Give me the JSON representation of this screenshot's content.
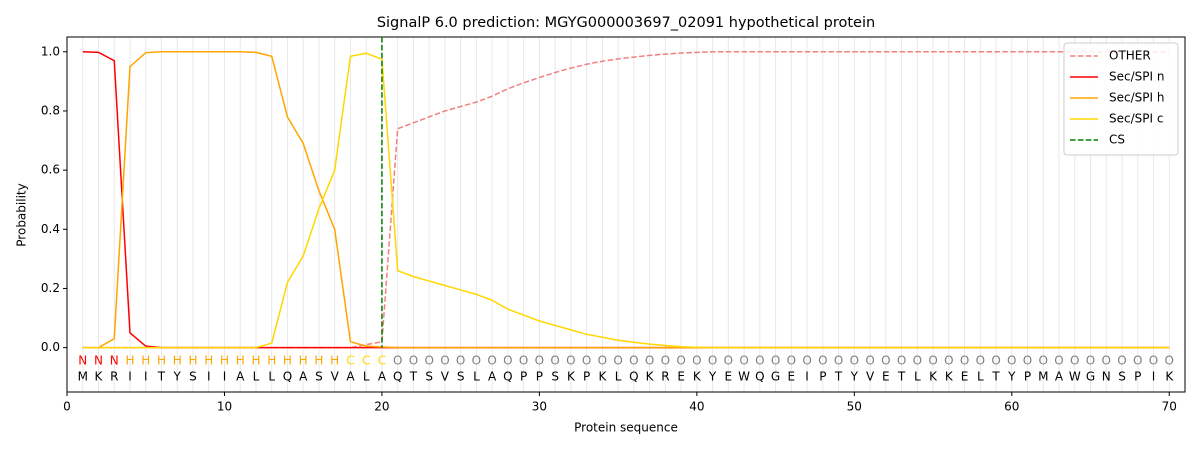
{
  "chart_data": {
    "type": "line",
    "title": "SignalP 6.0 prediction: MGYG000003697_02091 hypothetical protein",
    "xlabel": "Protein sequence",
    "ylabel": "Probability",
    "xlim": [
      0,
      71
    ],
    "ylim": [
      -0.15,
      1.05
    ],
    "xticks": [
      0,
      10,
      20,
      30,
      40,
      50,
      60,
      70
    ],
    "yticks": [
      {
        "value": 0,
        "label": "0.0"
      },
      {
        "value": 0.2,
        "label": "0.2"
      },
      {
        "value": 0.4,
        "label": "0.4"
      },
      {
        "value": 0.6,
        "label": "0.6"
      },
      {
        "value": 0.8,
        "label": "0.8"
      },
      {
        "value": 1,
        "label": "1.0"
      }
    ],
    "x": [
      1,
      2,
      3,
      4,
      5,
      6,
      7,
      8,
      9,
      10,
      11,
      12,
      13,
      14,
      15,
      16,
      17,
      18,
      19,
      20,
      21,
      22,
      23,
      24,
      25,
      26,
      27,
      28,
      29,
      30,
      31,
      32,
      33,
      34,
      35,
      36,
      37,
      38,
      39,
      40,
      41,
      42,
      43,
      44,
      45,
      46,
      47,
      48,
      49,
      50,
      51,
      52,
      53,
      54,
      55,
      56,
      57,
      58,
      59,
      60,
      61,
      62,
      63,
      64,
      65,
      66,
      67,
      68,
      69,
      70
    ],
    "sequence": [
      "M",
      "K",
      "R",
      "I",
      "I",
      "T",
      "Y",
      "S",
      "I",
      "I",
      "A",
      "L",
      "L",
      "Q",
      "A",
      "S",
      "V",
      "A",
      "L",
      "A",
      "Q",
      "T",
      "S",
      "V",
      "S",
      "L",
      "A",
      "Q",
      "P",
      "P",
      "S",
      "K",
      "P",
      "K",
      "L",
      "Q",
      "K",
      "R",
      "E",
      "K",
      "Y",
      "E",
      "W",
      "Q",
      "G",
      "E",
      "I",
      "P",
      "T",
      "Y",
      "V",
      "E",
      "T",
      "L",
      "K",
      "K",
      "E",
      "L",
      "T",
      "Y",
      "P",
      "M",
      "A",
      "W",
      "G",
      "N",
      "S",
      "P",
      "I",
      "K"
    ],
    "regions": [
      "N",
      "N",
      "N",
      "H",
      "H",
      "H",
      "H",
      "H",
      "H",
      "H",
      "H",
      "H",
      "H",
      "H",
      "H",
      "H",
      "H",
      "C",
      "C",
      "C",
      "O",
      "O",
      "O",
      "O",
      "O",
      "O",
      "O",
      "O",
      "O",
      "O",
      "O",
      "O",
      "O",
      "O",
      "O",
      "O",
      "O",
      "O",
      "O",
      "O",
      "O",
      "O",
      "O",
      "O",
      "O",
      "O",
      "O",
      "O",
      "O",
      "O",
      "O",
      "O",
      "O",
      "O",
      "O",
      "O",
      "O",
      "O",
      "O",
      "O",
      "O",
      "O",
      "O",
      "O",
      "O",
      "O",
      "O",
      "O",
      "O",
      "O"
    ],
    "region_colors": {
      "N": "#ff0000",
      "H": "#ffa500",
      "C": "#ffd700",
      "O": "#808080"
    },
    "series": [
      {
        "name": "OTHER",
        "color": "#f08080",
        "dashed": true,
        "values": [
          0,
          0,
          0,
          0,
          0,
          0,
          0,
          0,
          0,
          0,
          0,
          0,
          0,
          0,
          0,
          0,
          0,
          0,
          0.01,
          0.02,
          0.74,
          0.76,
          0.78,
          0.8,
          0.815,
          0.83,
          0.85,
          0.875,
          0.895,
          0.913,
          0.93,
          0.945,
          0.958,
          0.968,
          0.976,
          0.982,
          0.988,
          0.992,
          0.996,
          0.998,
          1,
          1,
          1,
          1,
          1,
          1,
          1,
          1,
          1,
          1,
          1,
          1,
          1,
          1,
          1,
          1,
          1,
          1,
          1,
          1,
          1,
          1,
          1,
          1,
          1,
          1,
          1,
          1,
          1,
          1
        ]
      },
      {
        "name": "Sec/SPI n",
        "color": "#ff0000",
        "values": [
          1,
          0.998,
          0.97,
          0.05,
          0.005,
          0,
          0,
          0,
          0,
          0,
          0,
          0,
          0,
          0,
          0,
          0,
          0,
          0,
          0,
          0,
          0,
          0,
          0,
          0,
          0,
          0,
          0,
          0,
          0,
          0,
          0,
          0,
          0,
          0,
          0,
          0,
          0,
          0,
          0,
          0,
          0,
          0,
          0,
          0,
          0,
          0,
          0,
          0,
          0,
          0,
          0,
          0,
          0,
          0,
          0,
          0,
          0,
          0,
          0,
          0,
          0,
          0,
          0,
          0,
          0,
          0,
          0,
          0,
          0,
          0
        ]
      },
      {
        "name": "Sec/SPI h",
        "color": "#ffa500",
        "values": [
          0,
          0,
          0.03,
          0.95,
          0.997,
          1,
          1,
          1,
          1,
          1,
          1,
          0.998,
          0.985,
          0.78,
          0.69,
          0.53,
          0.4,
          0.02,
          0.005,
          0.002,
          0,
          0,
          0,
          0,
          0,
          0,
          0,
          0,
          0,
          0,
          0,
          0,
          0,
          0,
          0,
          0,
          0,
          0,
          0,
          0,
          0,
          0,
          0,
          0,
          0,
          0,
          0,
          0,
          0,
          0,
          0,
          0,
          0,
          0,
          0,
          0,
          0,
          0,
          0,
          0,
          0,
          0,
          0,
          0,
          0,
          0,
          0,
          0,
          0,
          0
        ]
      },
      {
        "name": "Sec/SPI c",
        "color": "#ffd700",
        "values": [
          0,
          0,
          0,
          0,
          0,
          0,
          0,
          0,
          0,
          0,
          0,
          0,
          0.015,
          0.22,
          0.31,
          0.47,
          0.6,
          0.985,
          0.995,
          0.975,
          0.26,
          0.24,
          0.225,
          0.21,
          0.195,
          0.18,
          0.16,
          0.13,
          0.11,
          0.09,
          0.075,
          0.06,
          0.045,
          0.035,
          0.025,
          0.018,
          0.012,
          0.007,
          0.003,
          0.001,
          0,
          0,
          0,
          0,
          0,
          0,
          0,
          0,
          0,
          0,
          0,
          0,
          0,
          0,
          0,
          0,
          0,
          0,
          0,
          0,
          0,
          0,
          0,
          0,
          0,
          0,
          0,
          0,
          0,
          0
        ]
      }
    ],
    "cs": {
      "name": "CS",
      "x": 20,
      "color": "#008000"
    }
  }
}
